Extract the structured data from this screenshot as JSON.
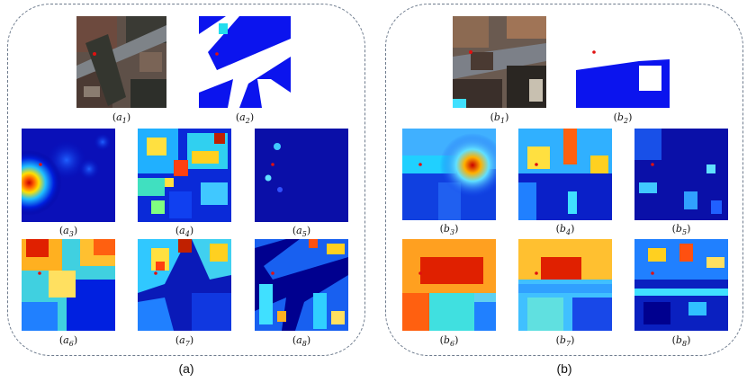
{
  "figure": {
    "panel_a": {
      "label": "(a)",
      "captions": {
        "a1": {
          "sym": "a",
          "sub": "1"
        },
        "a2": {
          "sym": "a",
          "sub": "2"
        },
        "a3": {
          "sym": "a",
          "sub": "3"
        },
        "a4": {
          "sym": "a",
          "sub": "4"
        },
        "a5": {
          "sym": "a",
          "sub": "5"
        },
        "a6": {
          "sym": "a",
          "sub": "6"
        },
        "a7": {
          "sym": "a",
          "sub": "7"
        },
        "a8": {
          "sym": "a",
          "sub": "8"
        }
      }
    },
    "panel_b": {
      "label": "(b)",
      "captions": {
        "b1": {
          "sym": "b",
          "sub": "1"
        },
        "b2": {
          "sym": "b",
          "sub": "2"
        },
        "b3": {
          "sym": "b",
          "sub": "3"
        },
        "b4": {
          "sym": "b",
          "sub": "4"
        },
        "b5": {
          "sym": "b",
          "sub": "5"
        },
        "b6": {
          "sym": "b",
          "sub": "6"
        },
        "b7": {
          "sym": "b",
          "sub": "7"
        },
        "b8": {
          "sym": "b",
          "sub": "8"
        }
      }
    },
    "colors": {
      "heatmap_low": "#00008f",
      "heatmap_high": "#c80000",
      "segmentation_blue": "#0b14ee",
      "segmentation_white": "#ffffff",
      "query_point": "#e01010"
    }
  }
}
